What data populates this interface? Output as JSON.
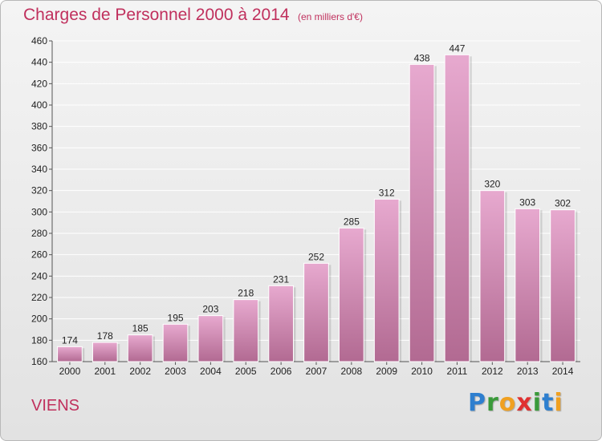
{
  "chart_data": {
    "type": "bar",
    "title": "Charges de Personnel 2000 à 2014",
    "subtitle": "(en milliers d'€)",
    "categories": [
      "2000",
      "2001",
      "2002",
      "2003",
      "2004",
      "2005",
      "2006",
      "2007",
      "2008",
      "2009",
      "2010",
      "2011",
      "2012",
      "2013",
      "2014"
    ],
    "values": [
      174,
      178,
      185,
      195,
      203,
      218,
      231,
      252,
      285,
      312,
      438,
      447,
      320,
      303,
      302
    ],
    "ylim": [
      160,
      460
    ],
    "yticks": [
      160,
      180,
      200,
      220,
      240,
      260,
      280,
      300,
      320,
      340,
      360,
      380,
      400,
      420,
      440,
      460
    ],
    "grid": true,
    "colors": {
      "bar_light": "#e7a9cf",
      "bar_dark": "#b26a92",
      "grid": "#ffffff",
      "text": "#c0305d"
    }
  },
  "footer": {
    "commune": "VIENS",
    "logo": {
      "letters": [
        {
          "char": "P",
          "color": "#2e7fcf"
        },
        {
          "char": "r",
          "color": "#3a9a3a"
        },
        {
          "char": "o",
          "color": "#f0a020"
        },
        {
          "char": "x",
          "color": "#e03030"
        },
        {
          "char": "i",
          "color": "#3a9a3a"
        },
        {
          "char": "t",
          "color": "#2e7fcf"
        },
        {
          "char": "i",
          "color": "#f0a020"
        }
      ]
    }
  }
}
